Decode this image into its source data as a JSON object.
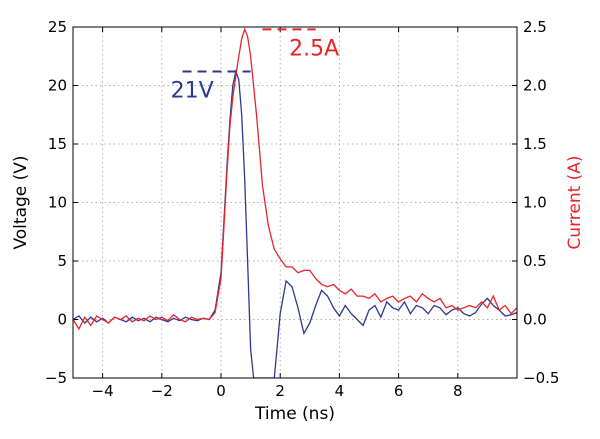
{
  "chart_data": {
    "type": "line",
    "xlabel": "Time (ns)",
    "ylabel": "Voltage (V)",
    "y2label": "Current (A)",
    "xlim": [
      -5,
      10
    ],
    "ylim": [
      -5,
      25
    ],
    "y2lim": [
      -0.5,
      2.5
    ],
    "xticks": [
      -4,
      -2,
      0,
      2,
      4,
      6,
      8
    ],
    "yticks": [
      -5,
      0,
      5,
      10,
      15,
      20,
      25
    ],
    "y2ticks": [
      -0.5,
      0.0,
      0.5,
      1.0,
      1.5,
      2.0,
      2.5
    ],
    "grid": true,
    "colors": {
      "voltage": "#2b3990",
      "current": "#e8232a"
    },
    "series": [
      {
        "axis": "left",
        "x": [
          -5.0,
          -4.8,
          -4.6,
          -4.4,
          -4.2,
          -4.0,
          -3.8,
          -3.6,
          -3.4,
          -3.2,
          -3.0,
          -2.8,
          -2.6,
          -2.4,
          -2.2,
          -2.0,
          -1.8,
          -1.6,
          -1.4,
          -1.2,
          -1.0,
          -0.8,
          -0.6,
          -0.4,
          -0.2,
          0.0,
          0.1,
          0.2,
          0.3,
          0.4,
          0.5,
          0.6,
          0.7,
          0.8,
          0.9,
          1.0,
          1.1,
          1.2,
          1.4,
          1.6,
          1.8,
          2.0,
          2.2,
          2.4,
          2.6,
          2.8,
          3.0,
          3.2,
          3.4,
          3.6,
          3.8,
          4.0,
          4.2,
          4.4,
          4.6,
          4.8,
          5.0,
          5.2,
          5.4,
          5.6,
          5.8,
          6.0,
          6.2,
          6.4,
          6.6,
          6.8,
          7.0,
          7.2,
          7.4,
          7.6,
          7.8,
          8.0,
          8.2,
          8.4,
          8.6,
          8.8,
          9.0,
          9.2,
          9.4,
          9.6,
          9.8,
          10.0
        ],
        "y": [
          0.0,
          0.3,
          -0.3,
          0.2,
          -0.2,
          0.1,
          -0.3,
          0.2,
          0.0,
          -0.2,
          0.2,
          -0.1,
          0.1,
          -0.2,
          0.2,
          0.0,
          -0.2,
          0.1,
          -0.1,
          0.2,
          0.0,
          -0.1,
          0.1,
          0.0,
          0.8,
          4.0,
          8.5,
          13.0,
          17.0,
          20.0,
          21.2,
          20.5,
          17.5,
          12.0,
          5.0,
          -2.5,
          -5.0,
          -5.0,
          -5.0,
          -5.0,
          -5.0,
          0.5,
          3.3,
          2.8,
          1.0,
          -1.2,
          -0.3,
          1.2,
          2.5,
          2.0,
          1.0,
          0.3,
          1.2,
          0.5,
          0.0,
          -0.5,
          0.8,
          1.2,
          0.2,
          1.5,
          1.0,
          0.8,
          1.5,
          0.5,
          1.2,
          1.0,
          0.5,
          1.2,
          1.0,
          0.4,
          0.8,
          1.0,
          0.5,
          0.3,
          0.6,
          1.3,
          1.8,
          1.2,
          0.8,
          0.3,
          0.4,
          0.6
        ]
      },
      {
        "axis": "right",
        "x": [
          -5.0,
          -4.8,
          -4.6,
          -4.4,
          -4.2,
          -4.0,
          -3.8,
          -3.6,
          -3.4,
          -3.2,
          -3.0,
          -2.8,
          -2.6,
          -2.4,
          -2.2,
          -2.0,
          -1.8,
          -1.6,
          -1.4,
          -1.2,
          -1.0,
          -0.8,
          -0.6,
          -0.4,
          -0.2,
          0.0,
          0.1,
          0.2,
          0.3,
          0.4,
          0.5,
          0.6,
          0.7,
          0.8,
          0.9,
          1.0,
          1.1,
          1.2,
          1.3,
          1.4,
          1.6,
          1.8,
          2.0,
          2.2,
          2.4,
          2.6,
          2.8,
          3.0,
          3.2,
          3.4,
          3.6,
          3.8,
          4.0,
          4.2,
          4.4,
          4.6,
          4.8,
          5.0,
          5.2,
          5.4,
          5.6,
          5.8,
          6.0,
          6.2,
          6.4,
          6.6,
          6.8,
          7.0,
          7.2,
          7.4,
          7.6,
          7.8,
          8.0,
          8.2,
          8.4,
          8.6,
          8.8,
          9.0,
          9.2,
          9.4,
          9.6,
          9.8,
          10.0
        ],
        "y": [
          0.0,
          -0.08,
          0.02,
          -0.05,
          0.03,
          0.0,
          -0.03,
          0.02,
          0.0,
          0.03,
          -0.02,
          0.01,
          -0.01,
          0.03,
          0.0,
          0.02,
          -0.01,
          0.04,
          0.0,
          -0.02,
          0.02,
          0.0,
          0.01,
          0.0,
          0.06,
          0.35,
          0.8,
          1.25,
          1.65,
          1.9,
          2.08,
          2.25,
          2.4,
          2.48,
          2.42,
          2.25,
          2.0,
          1.75,
          1.45,
          1.15,
          0.8,
          0.6,
          0.52,
          0.45,
          0.45,
          0.4,
          0.42,
          0.42,
          0.35,
          0.3,
          0.28,
          0.3,
          0.25,
          0.22,
          0.26,
          0.2,
          0.2,
          0.18,
          0.22,
          0.15,
          0.18,
          0.2,
          0.15,
          0.18,
          0.2,
          0.15,
          0.22,
          0.18,
          0.15,
          0.18,
          0.1,
          0.12,
          0.08,
          0.1,
          0.12,
          0.1,
          0.15,
          0.1,
          0.2,
          0.08,
          0.12,
          0.05,
          0.1
        ]
      }
    ],
    "annotations": [
      {
        "text": "21V",
        "color": "#2b3990",
        "ref_y": 21.2,
        "axis": "left",
        "line_x": [
          -1.3,
          1.0
        ],
        "label_x": -1.7
      },
      {
        "text": "2.5A",
        "color": "#e8232a",
        "ref_y": 2.48,
        "axis": "right",
        "line_x": [
          1.4,
          3.2
        ],
        "label_x": 2.3
      }
    ]
  }
}
